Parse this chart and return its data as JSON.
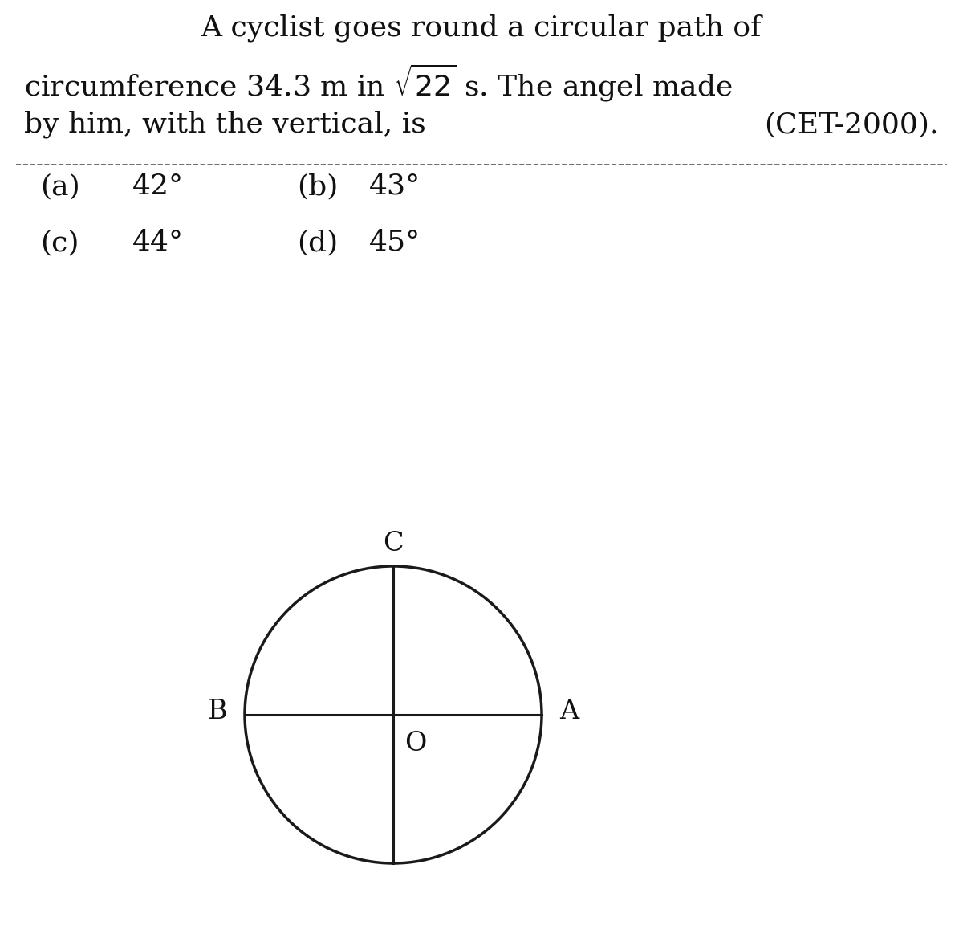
{
  "background_color": "#ffffff",
  "title_line1": "A cyclist goes round a circular path of",
  "title_line3": "by him, with the vertical, is",
  "title_line3_right": "(CET-2000).",
  "label_C": "C",
  "label_B": "B",
  "label_A": "A",
  "label_O": "O",
  "font_size_title": 26,
  "font_size_options": 26,
  "font_size_diagram_labels": 24,
  "circle_color": "#1a1a1a",
  "circle_linewidth": 2.5,
  "axes_linewidth": 2.2
}
